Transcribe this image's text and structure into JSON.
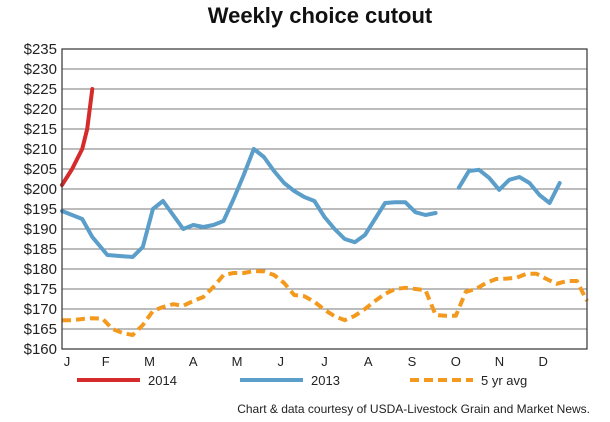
{
  "chart_data": {
    "type": "line",
    "title": "Weekly choice cutout",
    "xlabel": "",
    "ylabel": "",
    "ylim": [
      160,
      235
    ],
    "y_ticks": [
      160,
      165,
      170,
      175,
      180,
      185,
      190,
      195,
      200,
      205,
      210,
      215,
      220,
      225,
      230,
      235
    ],
    "y_tick_prefix": "$",
    "x_unit": "week of year",
    "xlim": [
      0,
      52
    ],
    "month_labels": [
      "J",
      "F",
      "M",
      "A",
      "M",
      "J",
      "J",
      "A",
      "S",
      "O",
      "N",
      "D"
    ],
    "grid": "horizontal",
    "legend_position": "bottom",
    "series": [
      {
        "name": "2014",
        "color": "#d62b2b",
        "style": "solid",
        "x": [
          0,
          1,
          2,
          2.5,
          3
        ],
        "y": [
          201,
          205,
          210,
          215,
          225
        ]
      },
      {
        "name": "2013",
        "color": "#5a9ec9",
        "style": "solid",
        "x": [
          0,
          2,
          3,
          4.5,
          6,
          7,
          8,
          9,
          10,
          11,
          12,
          13,
          14,
          15,
          16,
          17,
          18,
          19,
          20,
          21,
          22,
          23,
          24,
          25,
          26,
          27,
          28,
          29,
          30,
          31,
          32,
          33,
          34,
          35,
          36,
          37,
          38,
          39.3,
          40.3,
          41.3,
          42.3,
          43.3,
          44.3,
          45.3,
          46.3,
          47.3,
          48.3,
          49.3,
          50.3,
          51.3
        ],
        "y": [
          194.5,
          192.5,
          188,
          183.5,
          183.2,
          183,
          185.5,
          195,
          197,
          193.5,
          190,
          191,
          190.5,
          191,
          192,
          197.5,
          203.5,
          210,
          208,
          204.5,
          201.5,
          199.5,
          198,
          197,
          193,
          190,
          187.5,
          186.7,
          188.5,
          192.5,
          196.5,
          196.7,
          196.7,
          194.2,
          193.5,
          194,
          null,
          200.3,
          204.5,
          204.8,
          202.8,
          199.8,
          202.3,
          203,
          201.5,
          198.5,
          196.5,
          201.5,
          null,
          null
        ]
      },
      {
        "name": "5 yr avg",
        "color": "#f39a1e",
        "style": "dashed",
        "x": [
          0,
          1,
          2,
          3,
          4,
          5,
          6,
          7,
          8,
          9,
          10,
          11,
          12,
          13,
          14,
          15,
          16,
          17,
          18,
          19,
          20,
          21,
          22,
          23,
          24,
          25,
          26,
          27,
          28,
          29,
          30,
          31,
          32,
          33,
          34,
          35,
          36,
          37,
          38,
          39,
          40,
          41,
          42,
          43,
          44,
          45,
          46,
          47,
          48,
          49,
          50,
          51,
          52
        ],
        "y": [
          167.2,
          167.2,
          167.5,
          167.7,
          167.6,
          165,
          164,
          163.5,
          166,
          169.5,
          170.5,
          171.2,
          170.8,
          172,
          173,
          175.5,
          178.5,
          179,
          179,
          179.5,
          179.4,
          178.5,
          176.5,
          173.5,
          173.2,
          171.8,
          169.8,
          168.2,
          167.2,
          168.3,
          170,
          172,
          173.8,
          175,
          175.3,
          175,
          174.7,
          168.5,
          168.3,
          168.3,
          174.3,
          175,
          176.5,
          177.5,
          177.6,
          177.8,
          178.8,
          178.8,
          177.5,
          176.3,
          177,
          177,
          172
        ]
      }
    ]
  },
  "credit": "Chart & data courtesy of USDA-Livestock Grain and Market News."
}
